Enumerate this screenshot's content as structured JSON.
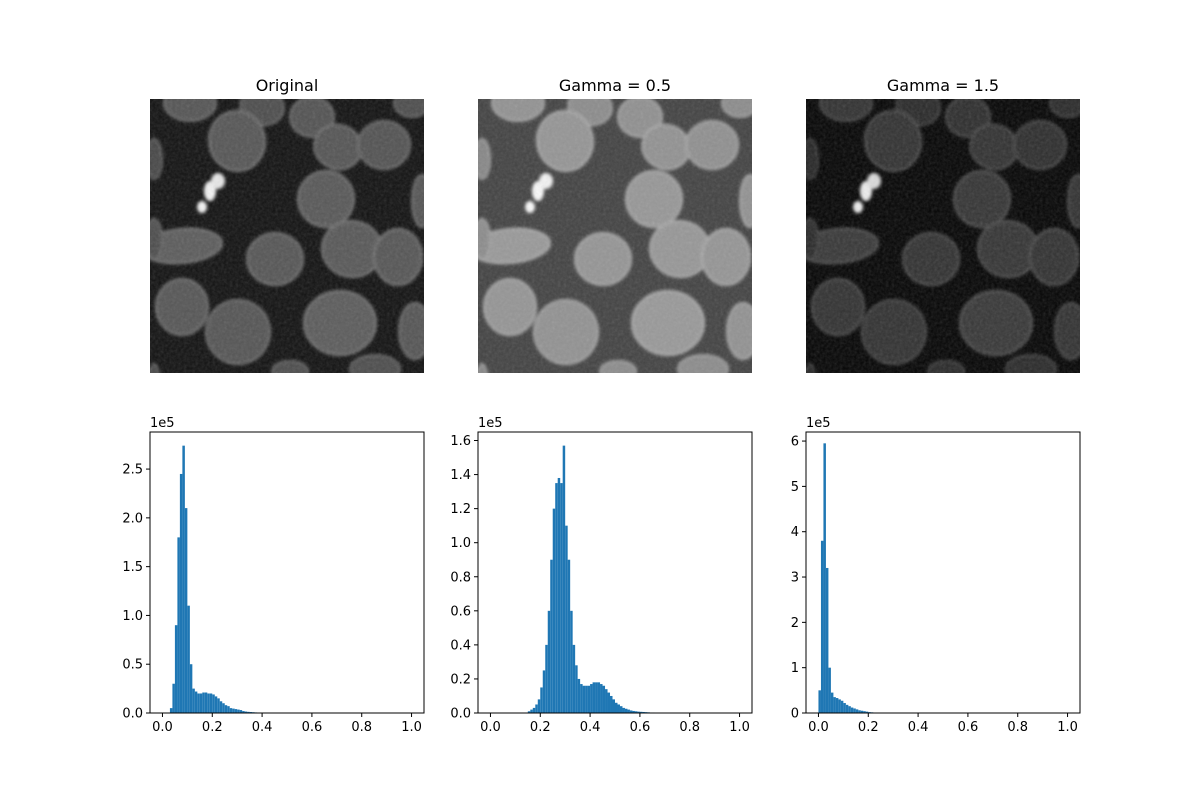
{
  "figure": {
    "panels": [
      {
        "title": "Original",
        "gamma": 1.0
      },
      {
        "title": "Gamma = 0.5",
        "gamma": 0.5
      },
      {
        "title": "Gamma = 1.5",
        "gamma": 1.5
      }
    ]
  },
  "chart_data": [
    {
      "type": "bar",
      "subtype": "histogram",
      "color": "#1f77b4",
      "offset_label": "1e5",
      "xlim": [
        -0.05,
        1.05
      ],
      "ylim": [
        0,
        2.88
      ],
      "xticks": [
        "0.0",
        "0.2",
        "0.4",
        "0.6",
        "0.8",
        "1.0"
      ],
      "yticks": [
        "0.0",
        "0.5",
        "1.0",
        "1.5",
        "2.0",
        "2.5"
      ],
      "bin_width": 0.01,
      "x_start": 0.0,
      "values": [
        0,
        0,
        0,
        0.05,
        0.3,
        0.9,
        1.8,
        2.45,
        2.74,
        2.1,
        1.1,
        0.5,
        0.25,
        0.22,
        0.2,
        0.2,
        0.21,
        0.21,
        0.2,
        0.2,
        0.19,
        0.17,
        0.15,
        0.12,
        0.1,
        0.08,
        0.07,
        0.05,
        0.045,
        0.04,
        0.035,
        0.03,
        0.02,
        0.015,
        0.012,
        0.01,
        0.008,
        0.006,
        0.005,
        0.004,
        0.003,
        0.002,
        0.001
      ]
    },
    {
      "type": "bar",
      "subtype": "histogram",
      "color": "#1f77b4",
      "offset_label": "1e5",
      "xlim": [
        -0.05,
        1.05
      ],
      "ylim": [
        0,
        1.65
      ],
      "xticks": [
        "0.0",
        "0.2",
        "0.4",
        "0.6",
        "0.8",
        "1.0"
      ],
      "yticks": [
        "0.0",
        "0.2",
        "0.4",
        "0.6",
        "0.8",
        "1.0",
        "1.2",
        "1.4",
        "1.6"
      ],
      "bin_width": 0.01,
      "x_start": 0.15,
      "values": [
        0.01,
        0.02,
        0.03,
        0.05,
        0.08,
        0.15,
        0.25,
        0.4,
        0.6,
        0.9,
        1.2,
        1.35,
        1.38,
        1.35,
        1.57,
        1.1,
        0.9,
        0.6,
        0.4,
        0.28,
        0.2,
        0.17,
        0.16,
        0.16,
        0.16,
        0.17,
        0.18,
        0.18,
        0.18,
        0.17,
        0.16,
        0.14,
        0.12,
        0.1,
        0.08,
        0.06,
        0.05,
        0.04,
        0.03,
        0.025,
        0.02,
        0.015,
        0.012,
        0.01,
        0.008,
        0.007,
        0.006,
        0.005,
        0.004,
        0.003,
        0.003,
        0.002,
        0.002,
        0.002,
        0.002,
        0.002
      ]
    },
    {
      "type": "bar",
      "subtype": "histogram",
      "color": "#1f77b4",
      "offset_label": "1e5",
      "xlim": [
        -0.05,
        1.05
      ],
      "ylim": [
        0,
        6.2
      ],
      "xticks": [
        "0.0",
        "0.2",
        "0.4",
        "0.6",
        "0.8",
        "1.0"
      ],
      "yticks": [
        "0",
        "1",
        "2",
        "3",
        "4",
        "5",
        "6"
      ],
      "bin_width": 0.01,
      "x_start": 0.0,
      "values": [
        0.5,
        3.8,
        5.95,
        3.2,
        1.0,
        0.45,
        0.35,
        0.33,
        0.3,
        0.27,
        0.22,
        0.18,
        0.15,
        0.12,
        0.1,
        0.08,
        0.06,
        0.05,
        0.04,
        0.03,
        0.02,
        0.015,
        0.01,
        0.008
      ]
    }
  ]
}
